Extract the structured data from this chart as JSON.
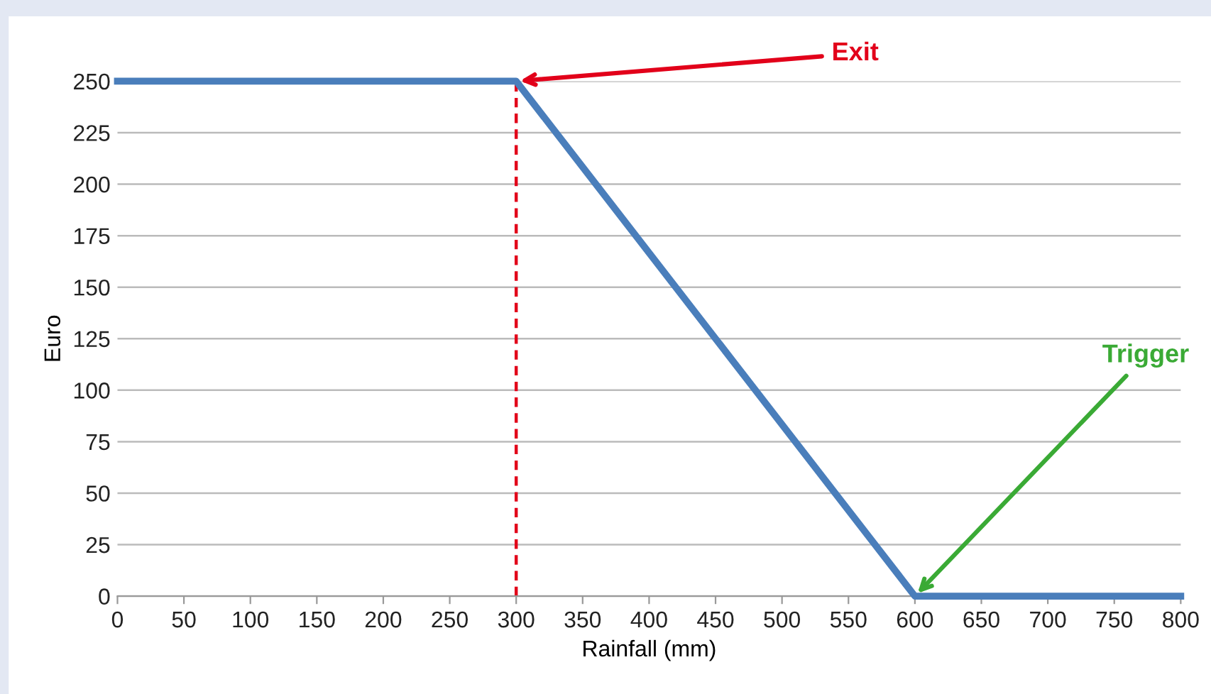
{
  "chart_data": {
    "type": "line",
    "xlabel": "Rainfall (mm)",
    "ylabel": "Euro",
    "series": [
      {
        "color": "#4a7ebb",
        "x": [
          0,
          300,
          600,
          800
        ],
        "values": [
          250,
          250,
          0,
          0
        ],
        "line_style": "solid"
      },
      {
        "color": "#e2001a",
        "x": [
          300,
          300
        ],
        "values": [
          0,
          250
        ],
        "line_style": "dashed"
      }
    ],
    "xlim": [
      0,
      800
    ],
    "xticks": [
      0,
      50,
      100,
      150,
      200,
      250,
      300,
      350,
      400,
      450,
      500,
      550,
      600,
      650,
      700,
      750,
      800
    ],
    "ylim": [
      0,
      250
    ],
    "yticks": [
      0,
      25,
      50,
      75,
      100,
      125,
      150,
      175,
      200,
      225,
      250
    ],
    "grid": "y",
    "legend": false,
    "marker": "none",
    "annotations": [
      {
        "text": "Exit",
        "x": 300,
        "y": 250
      },
      {
        "text": "Trigger",
        "x": 600,
        "y": 0
      }
    ]
  }
}
